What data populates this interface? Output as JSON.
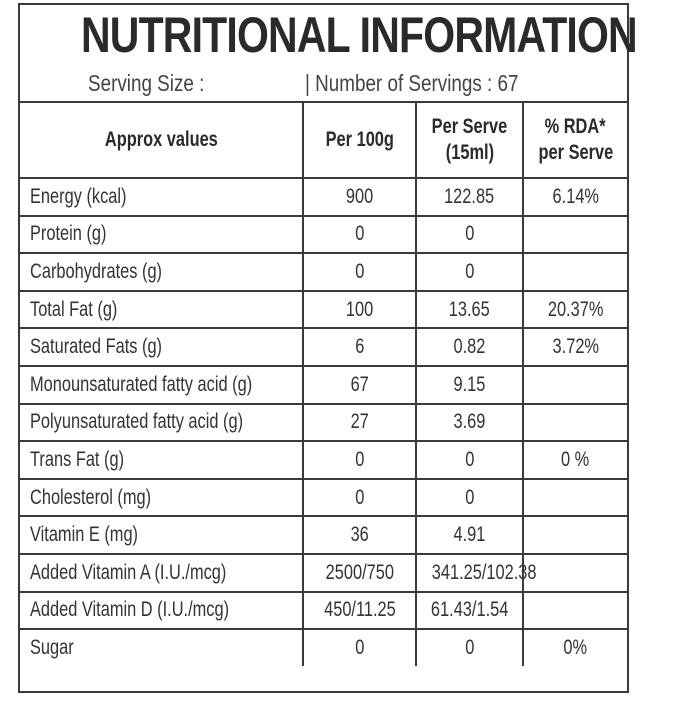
{
  "title": "NUTRITIONAL INFORMATION",
  "serving_size": "Serving Size :",
  "servings": "| Number of Servings : 67",
  "headers": {
    "c0": "Approx values",
    "c1": "Per 100g",
    "c2a": "Per Serve",
    "c2b": "(15ml)",
    "c3a": "% RDA*",
    "c3b": "per Serve"
  },
  "rows": [
    {
      "name": "Energy (kcal)",
      "per100": "900",
      "serve": "122.85",
      "rda": "6.14%"
    },
    {
      "name": "Protein (g)",
      "per100": "0",
      "serve": "0",
      "rda": ""
    },
    {
      "name": "Carbohydrates (g)",
      "per100": "0",
      "serve": "0",
      "rda": ""
    },
    {
      "name": "Total Fat (g)",
      "per100": "100",
      "serve": "13.65",
      "rda": "20.37%"
    },
    {
      "name": "Saturated Fats (g)",
      "per100": "6",
      "serve": "0.82",
      "rda": "3.72%"
    },
    {
      "name": "Monounsaturated fatty acid (g)",
      "per100": "67",
      "serve": "9.15",
      "rda": ""
    },
    {
      "name": "Polyunsaturated fatty acid (g)",
      "per100": "27",
      "serve": "3.69",
      "rda": ""
    },
    {
      "name": "Trans Fat (g)",
      "per100": "0",
      "serve": "0",
      "rda": "0 %"
    },
    {
      "name": "Cholesterol (mg)",
      "per100": "0",
      "serve": "0",
      "rda": ""
    },
    {
      "name": "Vitamin E (mg)",
      "per100": "36",
      "serve": "4.91",
      "rda": ""
    },
    {
      "name": "Added Vitamin A (I.U./mcg)",
      "per100": "2500/750",
      "serve": "341.25/102.38",
      "rda": ""
    },
    {
      "name": "Added Vitamin D (I.U./mcg)",
      "per100": "450/11.25",
      "serve": "61.43/1.54",
      "rda": ""
    },
    {
      "name": "Sugar",
      "per100": "0",
      "serve": "0",
      "rda": "0%"
    }
  ]
}
